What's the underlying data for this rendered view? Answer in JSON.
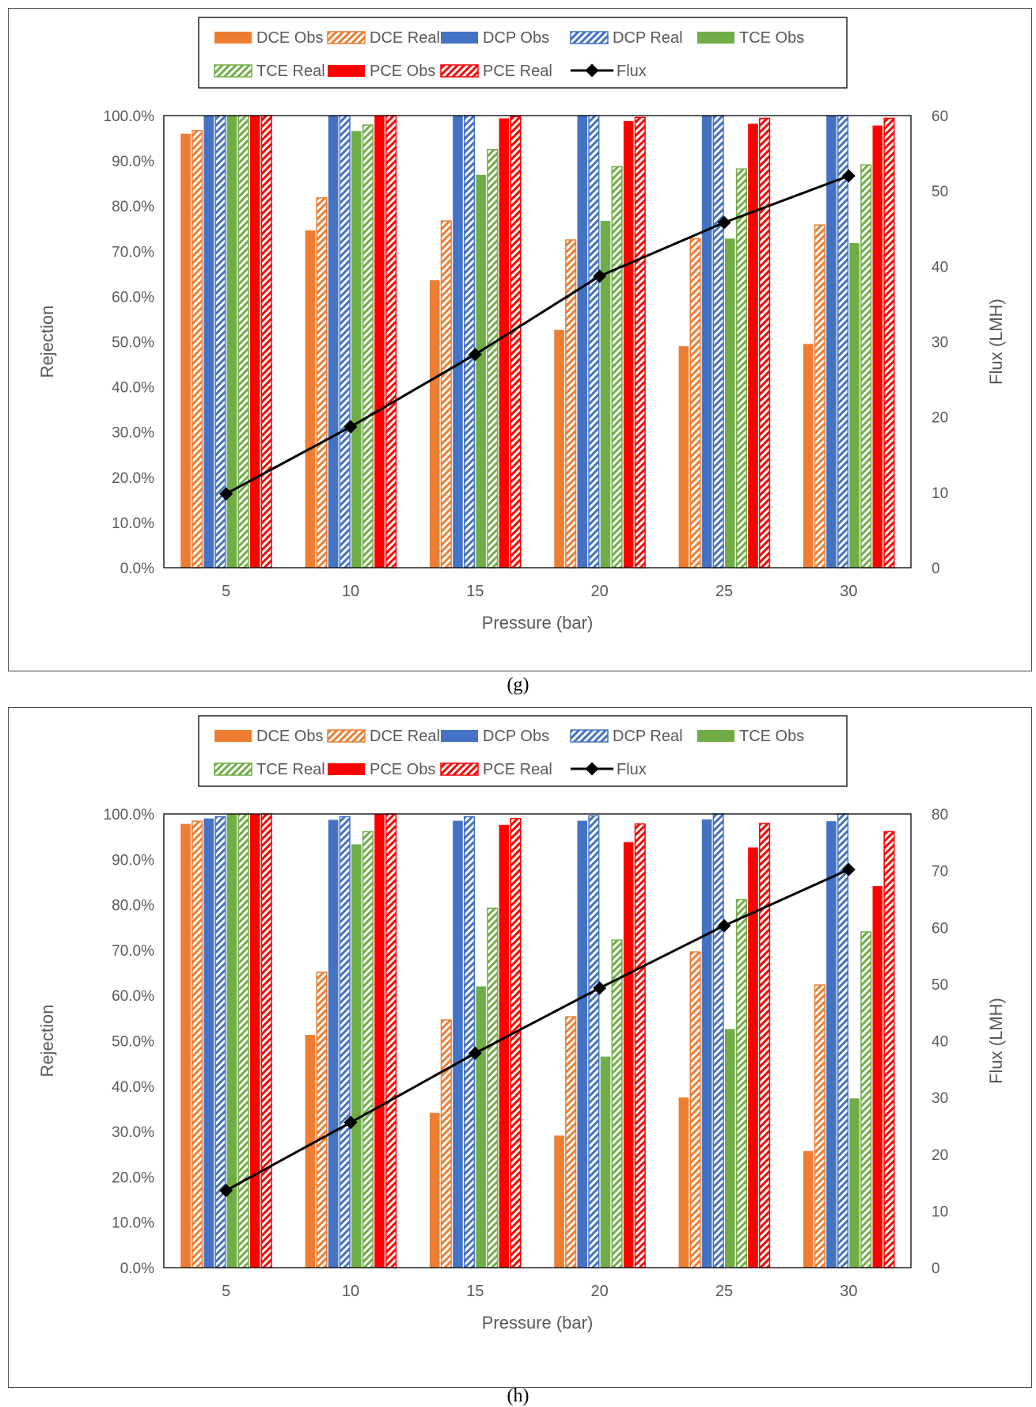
{
  "chart_data": [
    {
      "type": "bar",
      "panel_label": "(g)",
      "categories": [
        "5",
        "10",
        "15",
        "20",
        "25",
        "30"
      ],
      "xlabel": "Pressure (bar)",
      "ylabel": "Rejection",
      "y2label": "Flux (LMH)",
      "ylim": [
        0,
        100
      ],
      "y_ticks": [
        "0.0%",
        "10.0%",
        "20.0%",
        "30.0%",
        "40.0%",
        "50.0%",
        "60.0%",
        "70.0%",
        "80.0%",
        "90.0%",
        "100.0%"
      ],
      "y2lim": [
        0,
        60
      ],
      "y2_ticks": [
        "0",
        "10",
        "20",
        "30",
        "40",
        "50",
        "60"
      ],
      "legend": [
        "DCE Obs",
        "DCE Real",
        "DCP Obs",
        "DCP Real",
        "TCE Obs",
        "TCE Real",
        "PCE Obs",
        "PCE Real",
        "Flux"
      ],
      "series": [
        {
          "name": "DCE Obs",
          "color": "#ED7D31",
          "pattern": "solid",
          "values": [
            96,
            74.6,
            63.6,
            52.6,
            49,
            49.5
          ]
        },
        {
          "name": "DCE Real",
          "color": "#ED7D31",
          "pattern": "hatch",
          "values": [
            96.7,
            81.8,
            76.7,
            72.5,
            72.8,
            75.8
          ]
        },
        {
          "name": "DCP Obs",
          "color": "#4472C4",
          "pattern": "solid",
          "values": [
            100,
            100,
            100,
            100,
            100,
            100
          ]
        },
        {
          "name": "DCP Real",
          "color": "#4472C4",
          "pattern": "hatch",
          "values": [
            100,
            100,
            100,
            100,
            100,
            100
          ]
        },
        {
          "name": "TCE Obs",
          "color": "#70AD47",
          "pattern": "solid",
          "values": [
            100,
            96.6,
            86.9,
            76.7,
            72.8,
            71.8
          ]
        },
        {
          "name": "TCE Real",
          "color": "#70AD47",
          "pattern": "hatch",
          "values": [
            100,
            97.9,
            92.5,
            88.7,
            88.2,
            89.1
          ]
        },
        {
          "name": "PCE Obs",
          "color": "#FF0000",
          "pattern": "solid",
          "values": [
            100,
            100,
            99.4,
            98.8,
            98.2,
            97.8
          ]
        },
        {
          "name": "PCE Real",
          "color": "#FF0000",
          "pattern": "hatch",
          "values": [
            100,
            100,
            99.8,
            99.6,
            99.4,
            99.4
          ]
        }
      ],
      "flux": {
        "name": "Flux",
        "color": "#000000",
        "values": [
          9.8,
          18.7,
          28.3,
          38.7,
          45.8,
          52
        ]
      }
    },
    {
      "type": "bar",
      "panel_label": "(h)",
      "categories": [
        "5",
        "10",
        "15",
        "20",
        "25",
        "30"
      ],
      "xlabel": "Pressure (bar)",
      "ylabel": "Rejection",
      "y2label": "Flux (LMH)",
      "ylim": [
        0,
        100
      ],
      "y_ticks": [
        "0.0%",
        "10.0%",
        "20.0%",
        "30.0%",
        "40.0%",
        "50.0%",
        "60.0%",
        "70.0%",
        "80.0%",
        "90.0%",
        "100.0%"
      ],
      "y2lim": [
        0,
        80
      ],
      "y2_ticks": [
        "0",
        "10",
        "20",
        "30",
        "40",
        "50",
        "60",
        "70",
        "80"
      ],
      "legend": [
        "DCE Obs",
        "DCE Real",
        "DCP Obs",
        "DCP Real",
        "TCE Obs",
        "TCE Real",
        "PCE Obs",
        "PCE Real",
        "Flux"
      ],
      "series": [
        {
          "name": "DCE Obs",
          "color": "#ED7D31",
          "pattern": "solid",
          "values": [
            97.8,
            51.3,
            34.1,
            29.1,
            37.5,
            25.7
          ]
        },
        {
          "name": "DCE Real",
          "color": "#ED7D31",
          "pattern": "hatch",
          "values": [
            98.4,
            65.1,
            54.6,
            55.3,
            69.6,
            62.3
          ]
        },
        {
          "name": "DCP Obs",
          "color": "#4472C4",
          "pattern": "solid",
          "values": [
            99,
            98.7,
            98.5,
            98.5,
            98.8,
            98.4
          ]
        },
        {
          "name": "DCP Real",
          "color": "#4472C4",
          "pattern": "hatch",
          "values": [
            99.4,
            99.4,
            99.4,
            99.6,
            100,
            100
          ]
        },
        {
          "name": "TCE Obs",
          "color": "#70AD47",
          "pattern": "solid",
          "values": [
            100,
            93.3,
            62,
            46.5,
            52.6,
            37.3
          ]
        },
        {
          "name": "TCE Real",
          "color": "#70AD47",
          "pattern": "hatch",
          "values": [
            100,
            96.1,
            79.2,
            72.2,
            81.1,
            74
          ]
        },
        {
          "name": "PCE Obs",
          "color": "#FF0000",
          "pattern": "solid",
          "values": [
            100,
            100,
            97.6,
            93.8,
            92.6,
            84.1
          ]
        },
        {
          "name": "PCE Real",
          "color": "#FF0000",
          "pattern": "hatch",
          "values": [
            100,
            100,
            99,
            97.8,
            97.9,
            96.1
          ]
        }
      ],
      "flux": {
        "name": "Flux",
        "color": "#000000",
        "values": [
          13.6,
          25.6,
          37.8,
          49.3,
          60.3,
          70.2
        ]
      }
    }
  ]
}
